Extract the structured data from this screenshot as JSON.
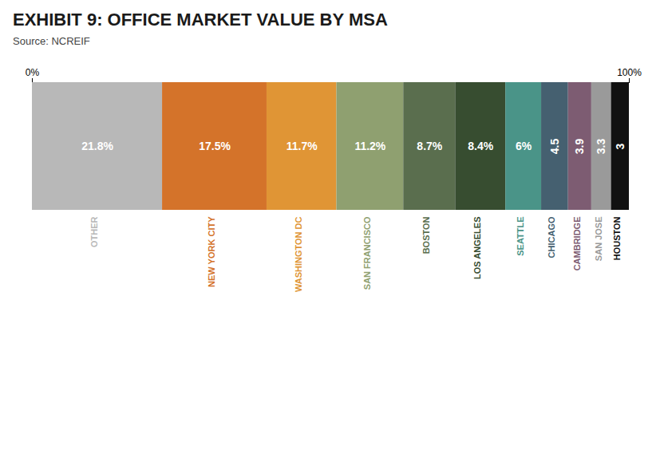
{
  "chart_data": {
    "type": "bar",
    "title": "EXHIBIT 9: OFFICE MARKET VALUE BY MSA",
    "subtitle": "Source: NCREIF",
    "orientation": "horizontal",
    "stacked": true,
    "categories": [
      "OTHER",
      "NEW YORK CITY",
      "WASHINGTON DC",
      "SAN FRANCISCO",
      "BOSTON",
      "LOS ANGELES",
      "SEATTLE",
      "CHICAGO",
      "CAMBRIDGE",
      "SAN JOSE",
      "HOUSTON"
    ],
    "values": [
      21.8,
      17.5,
      11.7,
      11.2,
      8.7,
      8.4,
      6.0,
      4.5,
      3.9,
      3.3,
      3.0
    ],
    "value_labels": [
      "21.8%",
      "17.5%",
      "11.7%",
      "11.2%",
      "8.7%",
      "8.4%",
      "6%",
      "4.5",
      "3.9",
      "3.3",
      "3"
    ],
    "data_labels": true,
    "colors": [
      "#b8b8b8",
      "#d4732a",
      "#e09535",
      "#8fa070",
      "#5a6e4e",
      "#374d30",
      "#4a9488",
      "#456070",
      "#7d5c72",
      "#9a9a9a",
      "#111111"
    ],
    "xlim": [
      0,
      100
    ],
    "xticks": [
      {
        "value": 0,
        "label": "0%"
      },
      {
        "value": 100,
        "label": "100%"
      }
    ],
    "grid": false
  }
}
